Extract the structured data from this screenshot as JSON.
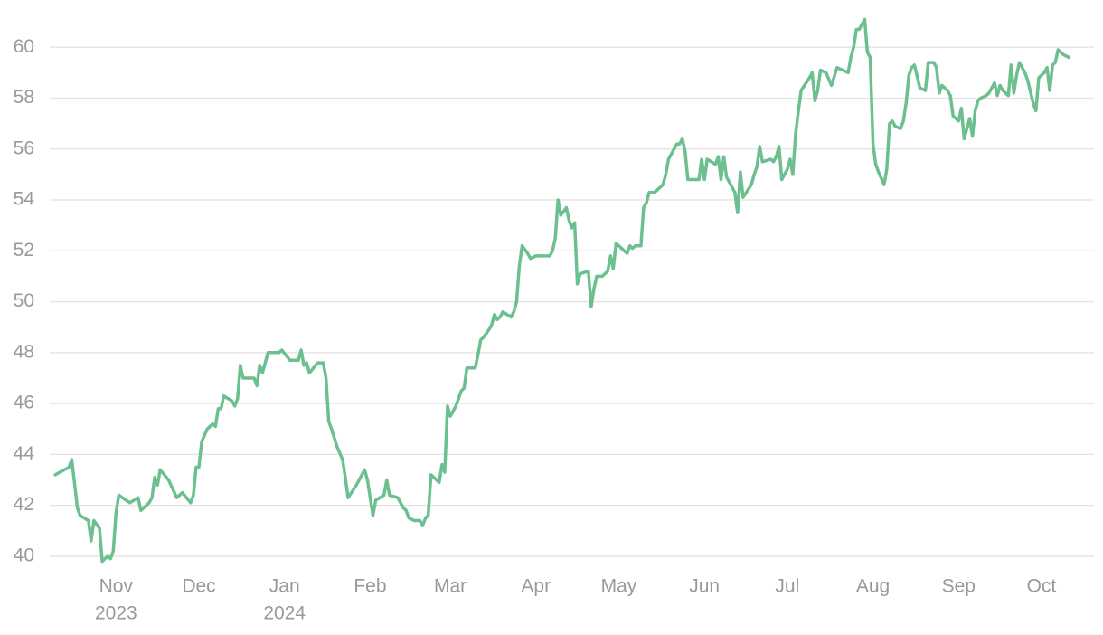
{
  "chart_data": {
    "type": "line",
    "color": "#6cbf8e",
    "grid": true,
    "x": [
      -22,
      -17,
      -16,
      -14,
      -13,
      -10,
      -9,
      -8,
      -6,
      -5,
      -3,
      -2,
      -1,
      0,
      1,
      5,
      8,
      9,
      12,
      13,
      14,
      15,
      16,
      19,
      22,
      24,
      27,
      28,
      29,
      30,
      31,
      33,
      35,
      36,
      37,
      38,
      39,
      42,
      43,
      44,
      45,
      46,
      50,
      51,
      52,
      53,
      55,
      59,
      60,
      63,
      66,
      67,
      68,
      69,
      70,
      73,
      75,
      76,
      77,
      78,
      80,
      82,
      83,
      84,
      87,
      90,
      91,
      93,
      94,
      97,
      98,
      99,
      102,
      104,
      105,
      106,
      108,
      110,
      111,
      112,
      113,
      114,
      117,
      118,
      119,
      120,
      121,
      123,
      125,
      126,
      127,
      130,
      131,
      132,
      133,
      135,
      136,
      137,
      138,
      139,
      140,
      143,
      144,
      145,
      146,
      147,
      149,
      150,
      152,
      154,
      157,
      158,
      159,
      160,
      161,
      163,
      164,
      165,
      166,
      167,
      168,
      171,
      172,
      173,
      174,
      176,
      178,
      179,
      180,
      181,
      184,
      185,
      186,
      187,
      188,
      190,
      191,
      192,
      193,
      195,
      197,
      198,
      199,
      200,
      202,
      203,
      204,
      205,
      206,
      207,
      211,
      212,
      213,
      214,
      217,
      218,
      219,
      220,
      221,
      224,
      225,
      226,
      227,
      230,
      231,
      232,
      233,
      234,
      237,
      238,
      239,
      240,
      241,
      243,
      244,
      245,
      246,
      247,
      248,
      251,
      252,
      253,
      254,
      255,
      257,
      259,
      261,
      265,
      266,
      267,
      268,
      269,
      271,
      272,
      273,
      274,
      275,
      276,
      278,
      279,
      280,
      281,
      282,
      284,
      285,
      286,
      287,
      288,
      289,
      291,
      293,
      294,
      296,
      297,
      298,
      299,
      301,
      302,
      303,
      305,
      306,
      307,
      309,
      310,
      311,
      312,
      313,
      315,
      316,
      318,
      319,
      320,
      321,
      322,
      323,
      324,
      325,
      326,
      327,
      329,
      330,
      332,
      333,
      334,
      336,
      337,
      338,
      339,
      340,
      341,
      343,
      345
    ],
    "values": [
      43.2,
      43.5,
      43.8,
      41.9,
      41.6,
      41.4,
      40.6,
      41.4,
      41.1,
      39.8,
      40.0,
      39.9,
      40.2,
      41.7,
      42.4,
      42.1,
      42.3,
      41.8,
      42.1,
      42.3,
      43.1,
      42.8,
      43.4,
      43.0,
      42.3,
      42.5,
      42.1,
      42.4,
      43.5,
      43.5,
      44.5,
      45.0,
      45.2,
      45.1,
      45.8,
      45.8,
      46.3,
      46.1,
      45.9,
      46.2,
      47.5,
      47.0,
      47.0,
      46.7,
      47.5,
      47.2,
      48.0,
      48.0,
      48.1,
      47.7,
      47.7,
      48.1,
      47.5,
      47.6,
      47.2,
      47.6,
      47.6,
      47.0,
      45.3,
      45.0,
      44.3,
      43.8,
      43.1,
      42.3,
      42.8,
      43.4,
      43.0,
      41.6,
      42.2,
      42.4,
      43.0,
      42.4,
      42.3,
      41.9,
      41.8,
      41.5,
      41.4,
      41.4,
      41.2,
      41.5,
      41.6,
      43.2,
      42.9,
      43.6,
      43.3,
      45.9,
      45.5,
      45.9,
      46.5,
      46.6,
      47.4,
      47.4,
      47.9,
      48.5,
      48.6,
      48.9,
      49.1,
      49.5,
      49.3,
      49.4,
      49.6,
      49.4,
      49.6,
      50.0,
      51.4,
      52.2,
      51.9,
      51.7,
      51.8,
      51.8,
      51.8,
      52.0,
      52.5,
      54.0,
      53.4,
      53.7,
      53.2,
      52.9,
      53.1,
      50.7,
      51.1,
      51.2,
      49.8,
      50.5,
      51.0,
      51.0,
      51.2,
      51.8,
      51.3,
      52.3,
      52.0,
      51.9,
      52.2,
      52.1,
      52.2,
      52.2,
      53.7,
      53.9,
      54.3,
      54.3,
      54.5,
      54.6,
      55.0,
      55.6,
      56.0,
      56.2,
      56.2,
      56.4,
      55.9,
      54.8,
      54.8,
      55.6,
      54.8,
      55.6,
      55.4,
      55.7,
      54.8,
      55.7,
      54.9,
      54.3,
      53.5,
      55.1,
      54.1,
      54.6,
      55.0,
      55.3,
      56.1,
      55.5,
      55.6,
      55.5,
      55.7,
      56.1,
      54.8,
      55.2,
      55.6,
      55.0,
      56.6,
      57.5,
      58.3,
      58.8,
      59.0,
      57.9,
      58.3,
      59.1,
      59.0,
      58.5,
      59.2,
      59.0,
      59.6,
      60.0,
      60.7,
      60.7,
      61.1,
      59.8,
      59.6,
      56.2,
      55.4,
      55.1,
      54.6,
      55.2,
      57.0,
      57.1,
      56.9,
      56.8,
      57.1,
      57.8,
      58.9,
      59.2,
      59.3,
      58.4,
      58.3,
      59.4,
      59.4,
      59.2,
      58.2,
      58.5,
      58.3,
      58.1,
      57.3,
      57.1,
      57.6,
      56.4,
      57.2,
      56.5,
      57.5,
      57.9,
      58.0,
      58.1,
      58.2,
      58.6,
      58.1,
      58.5,
      58.3,
      58.2,
      58.1,
      59.3,
      58.2,
      58.9,
      59.4,
      59.0,
      58.7,
      57.8,
      57.5,
      58.8,
      59.0,
      59.2,
      58.3,
      59.3,
      59.4,
      59.9,
      59.7,
      59.6
    ],
    "xlim": [
      -24,
      354
    ],
    "xticks": [
      {
        "value": 0,
        "label": "Nov"
      },
      {
        "value": 30,
        "label": "Dec"
      },
      {
        "value": 61,
        "label": "Jan"
      },
      {
        "value": 92,
        "label": "Feb"
      },
      {
        "value": 121,
        "label": "Mar"
      },
      {
        "value": 152,
        "label": "Apr"
      },
      {
        "value": 182,
        "label": "May"
      },
      {
        "value": 213,
        "label": "Jun"
      },
      {
        "value": 243,
        "label": "Jul"
      },
      {
        "value": 274,
        "label": "Aug"
      },
      {
        "value": 305,
        "label": "Sep"
      },
      {
        "value": 335,
        "label": "Oct"
      }
    ],
    "year_labels": [
      {
        "value": 0,
        "label": "2023"
      },
      {
        "value": 61,
        "label": "2024"
      }
    ],
    "ylim": [
      39.5,
      61.5
    ],
    "yticks": [
      40,
      42,
      44,
      46,
      48,
      50,
      52,
      54,
      56,
      58,
      60
    ]
  }
}
